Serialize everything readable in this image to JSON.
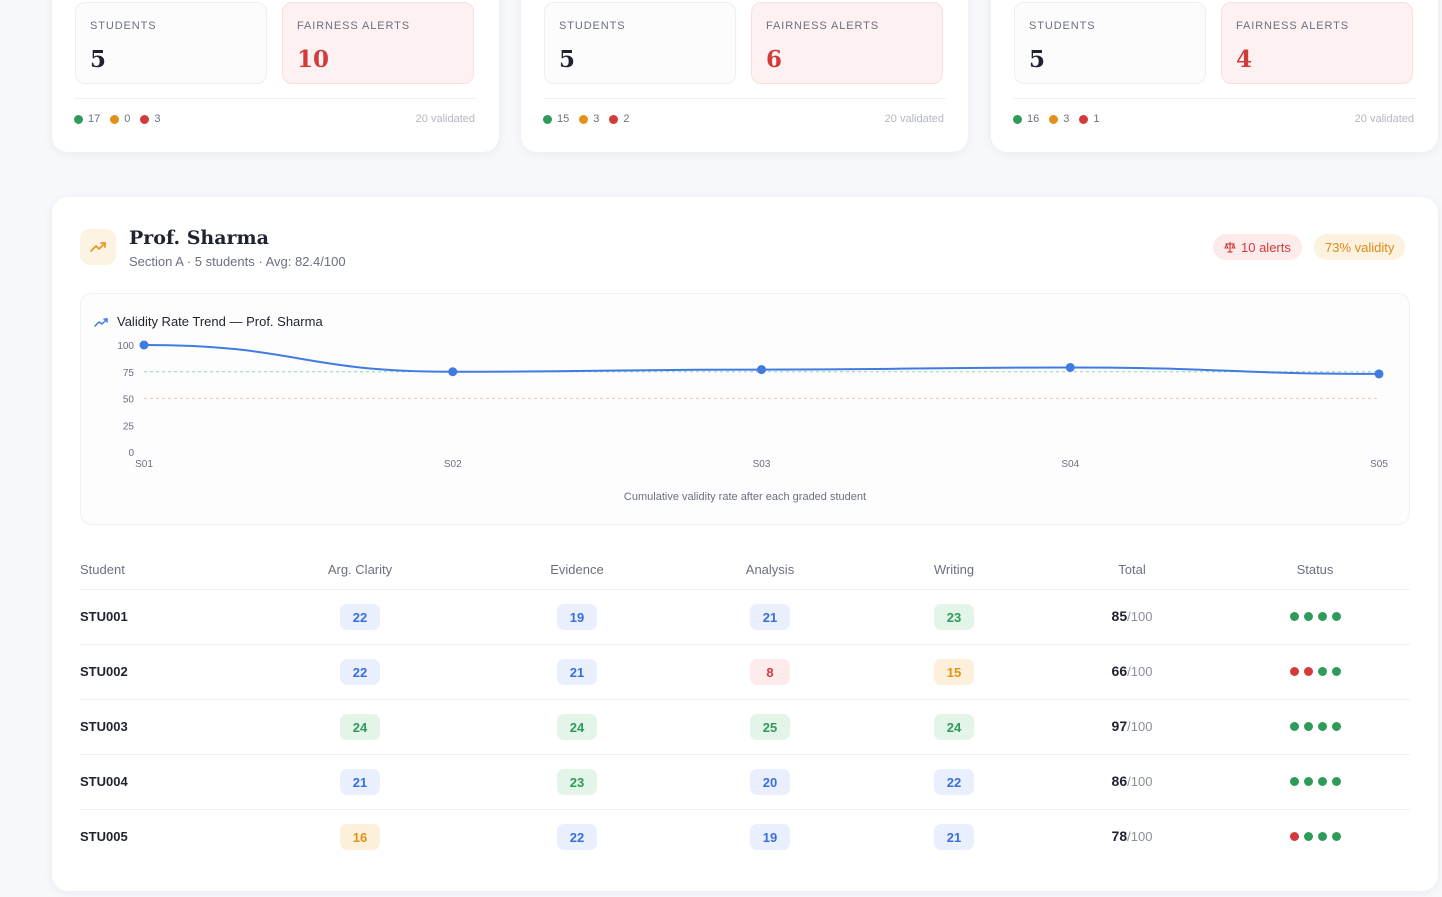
{
  "colors": {
    "green": "#2f9b5a",
    "amber": "#e39019",
    "red": "#d33b3b",
    "blue": "#3a6fd8"
  },
  "top_cards": [
    {
      "students_label": "STUDENTS",
      "students_value": "5",
      "alerts_label": "FAIRNESS ALERTS",
      "alerts_value": "10",
      "green": "17",
      "amber": "0",
      "red": "3",
      "validated": "20 validated"
    },
    {
      "students_label": "STUDENTS",
      "students_value": "5",
      "alerts_label": "FAIRNESS ALERTS",
      "alerts_value": "6",
      "green": "15",
      "amber": "3",
      "red": "2",
      "validated": "20 validated"
    },
    {
      "students_label": "STUDENTS",
      "students_value": "5",
      "alerts_label": "FAIRNESS ALERTS",
      "alerts_value": "4",
      "green": "16",
      "amber": "3",
      "red": "1",
      "validated": "20 validated"
    }
  ],
  "professor": {
    "name": "Prof. Sharma",
    "subtitle": "Section A · 5 students · Avg: 82.4/100",
    "alerts_pill": "10 alerts",
    "validity_pill": "73% validity",
    "trend_icon": "trending-up-icon",
    "scale_icon": "scale-icon"
  },
  "chart_data": {
    "type": "line",
    "title": "Validity Rate Trend — Prof. Sharma",
    "caption": "Cumulative validity rate after each graded student",
    "categories": [
      "S01",
      "S02",
      "S03",
      "S04",
      "S05"
    ],
    "values": [
      100,
      75,
      77,
      79,
      73
    ],
    "y_ticks": [
      "100",
      "75",
      "50",
      "25",
      "0"
    ],
    "ylim": [
      0,
      100
    ],
    "reference_lines": [
      {
        "value": 75,
        "color": "#8fcfc0"
      },
      {
        "value": 50,
        "color": "#f5c9a8"
      }
    ],
    "line_color": "#3f7be0",
    "grid": false
  },
  "table": {
    "headers": [
      "Student",
      "Arg. Clarity",
      "Evidence",
      "Analysis",
      "Writing",
      "Total",
      "Status"
    ],
    "out_of": "/100",
    "rows": [
      {
        "id": "STU001",
        "scores": [
          "22",
          "19",
          "21",
          "23"
        ],
        "levels": [
          "blue",
          "blue",
          "blue",
          "green"
        ],
        "total": "85",
        "status": [
          "green",
          "green",
          "green",
          "green"
        ]
      },
      {
        "id": "STU002",
        "scores": [
          "22",
          "21",
          "8",
          "15"
        ],
        "levels": [
          "blue",
          "blue",
          "red",
          "amber"
        ],
        "total": "66",
        "status": [
          "red",
          "red",
          "green",
          "green"
        ]
      },
      {
        "id": "STU003",
        "scores": [
          "24",
          "24",
          "25",
          "24"
        ],
        "levels": [
          "green",
          "green",
          "green",
          "green"
        ],
        "total": "97",
        "status": [
          "green",
          "green",
          "green",
          "green"
        ]
      },
      {
        "id": "STU004",
        "scores": [
          "21",
          "23",
          "20",
          "22"
        ],
        "levels": [
          "blue",
          "green",
          "blue",
          "blue"
        ],
        "total": "86",
        "status": [
          "green",
          "green",
          "green",
          "green"
        ]
      },
      {
        "id": "STU005",
        "scores": [
          "16",
          "22",
          "19",
          "21"
        ],
        "levels": [
          "amber",
          "blue",
          "blue",
          "blue"
        ],
        "total": "78",
        "status": [
          "red",
          "green",
          "green",
          "green"
        ]
      }
    ]
  }
}
